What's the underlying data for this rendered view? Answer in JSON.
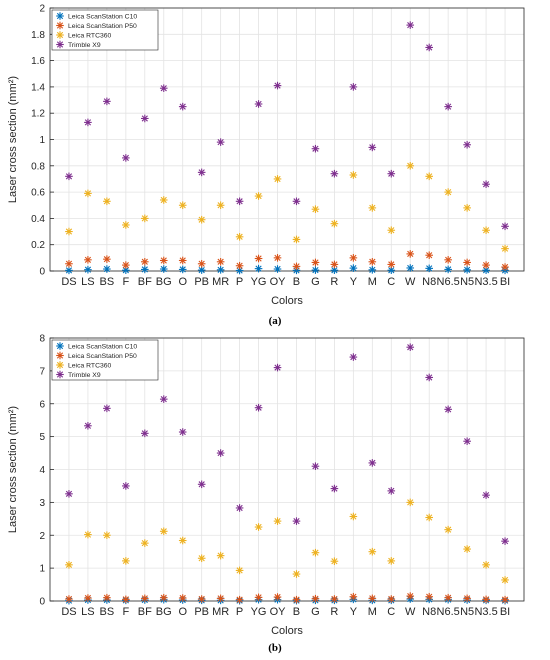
{
  "figure": {
    "panel_a_caption": "(a)",
    "panel_b_caption": "(b)"
  },
  "chart_data": [
    {
      "type": "scatter",
      "panel": "(a)",
      "categories": [
        "DS",
        "LS",
        "BS",
        "F",
        "BF",
        "BG",
        "O",
        "PB",
        "MR",
        "P",
        "YG",
        "OY",
        "B",
        "G",
        "R",
        "Y",
        "M",
        "C",
        "W",
        "N8",
        "N6.5",
        "N5",
        "N3.5",
        "BI"
      ],
      "xlabel": "Colors",
      "ylabel": "Laser cross section (mm²)",
      "ylim": [
        0,
        2
      ],
      "yticks": [
        "0",
        "0.2",
        "0.4",
        "0.6",
        "0.8",
        "1",
        "1.2",
        "1.4",
        "1.6",
        "1.8",
        "2"
      ],
      "grid": true,
      "legend_position": "top-left",
      "series": [
        {
          "name": "Leica ScanStation C10",
          "color": "#0072BD",
          "values": [
            0.005,
            0.01,
            0.015,
            0.006,
            0.012,
            0.015,
            0.012,
            0.007,
            0.009,
            0.004,
            0.018,
            0.015,
            0.005,
            0.007,
            0.006,
            0.022,
            0.009,
            0.006,
            0.023,
            0.02,
            0.012,
            0.009,
            0.006,
            0.005
          ]
        },
        {
          "name": "Leica ScanStation P50",
          "color": "#D95319",
          "values": [
            0.055,
            0.085,
            0.09,
            0.045,
            0.07,
            0.08,
            0.08,
            0.055,
            0.07,
            0.04,
            0.095,
            0.1,
            0.035,
            0.065,
            0.05,
            0.1,
            0.07,
            0.05,
            0.13,
            0.12,
            0.085,
            0.065,
            0.045,
            0.03
          ]
        },
        {
          "name": "Leica RTC360",
          "color": "#EDB120",
          "values": [
            0.3,
            0.59,
            0.53,
            0.35,
            0.4,
            0.54,
            0.5,
            0.39,
            0.5,
            0.26,
            0.57,
            0.7,
            0.24,
            0.47,
            0.36,
            0.73,
            0.48,
            0.31,
            0.8,
            0.72,
            0.6,
            0.48,
            0.31,
            0.17
          ]
        },
        {
          "name": "Trimble X9",
          "color": "#7E2F8E",
          "values": [
            0.72,
            1.13,
            1.29,
            0.86,
            1.16,
            1.39,
            1.25,
            0.75,
            0.98,
            0.53,
            1.27,
            1.41,
            0.53,
            0.93,
            0.74,
            1.4,
            0.94,
            0.74,
            1.87,
            1.7,
            1.25,
            0.96,
            0.66,
            0.34
          ]
        }
      ]
    },
    {
      "type": "scatter",
      "panel": "(b)",
      "categories": [
        "DS",
        "LS",
        "BS",
        "F",
        "BF",
        "BG",
        "O",
        "PB",
        "MR",
        "P",
        "YG",
        "OY",
        "B",
        "G",
        "R",
        "Y",
        "M",
        "C",
        "W",
        "N8",
        "N6.5",
        "N5",
        "N3.5",
        "BI"
      ],
      "xlabel": "Colors",
      "ylabel": "Laser cross section (mm²)",
      "ylim": [
        0,
        8
      ],
      "yticks": [
        "0",
        "1",
        "2",
        "3",
        "4",
        "5",
        "6",
        "7",
        "8"
      ],
      "grid": true,
      "legend_position": "top-left",
      "series": [
        {
          "name": "Leica ScanStation C10",
          "color": "#0072BD",
          "values": [
            0.01,
            0.03,
            0.03,
            0.02,
            0.03,
            0.04,
            0.03,
            0.02,
            0.02,
            0.01,
            0.04,
            0.04,
            0.01,
            0.02,
            0.02,
            0.05,
            0.02,
            0.02,
            0.06,
            0.05,
            0.04,
            0.03,
            0.02,
            0.01
          ]
        },
        {
          "name": "Leica ScanStation P50",
          "color": "#D95319",
          "values": [
            0.06,
            0.09,
            0.1,
            0.05,
            0.08,
            0.1,
            0.09,
            0.06,
            0.08,
            0.04,
            0.11,
            0.12,
            0.04,
            0.07,
            0.06,
            0.13,
            0.08,
            0.06,
            0.15,
            0.13,
            0.1,
            0.08,
            0.05,
            0.04
          ]
        },
        {
          "name": "Leica RTC360",
          "color": "#EDB120",
          "values": [
            1.1,
            2.02,
            2.0,
            1.22,
            1.76,
            2.12,
            1.84,
            1.3,
            1.38,
            0.93,
            2.25,
            2.43,
            0.82,
            1.47,
            1.21,
            2.57,
            1.5,
            1.22,
            3.0,
            2.54,
            2.17,
            1.58,
            1.1,
            0.64
          ]
        },
        {
          "name": "Trimble X9",
          "color": "#7E2F8E",
          "values": [
            3.26,
            5.33,
            5.86,
            3.5,
            5.1,
            6.14,
            5.14,
            3.55,
            4.5,
            2.83,
            5.88,
            7.1,
            2.43,
            4.1,
            3.42,
            7.42,
            4.2,
            3.35,
            7.72,
            6.8,
            5.83,
            4.86,
            3.22,
            1.82
          ]
        }
      ]
    }
  ]
}
